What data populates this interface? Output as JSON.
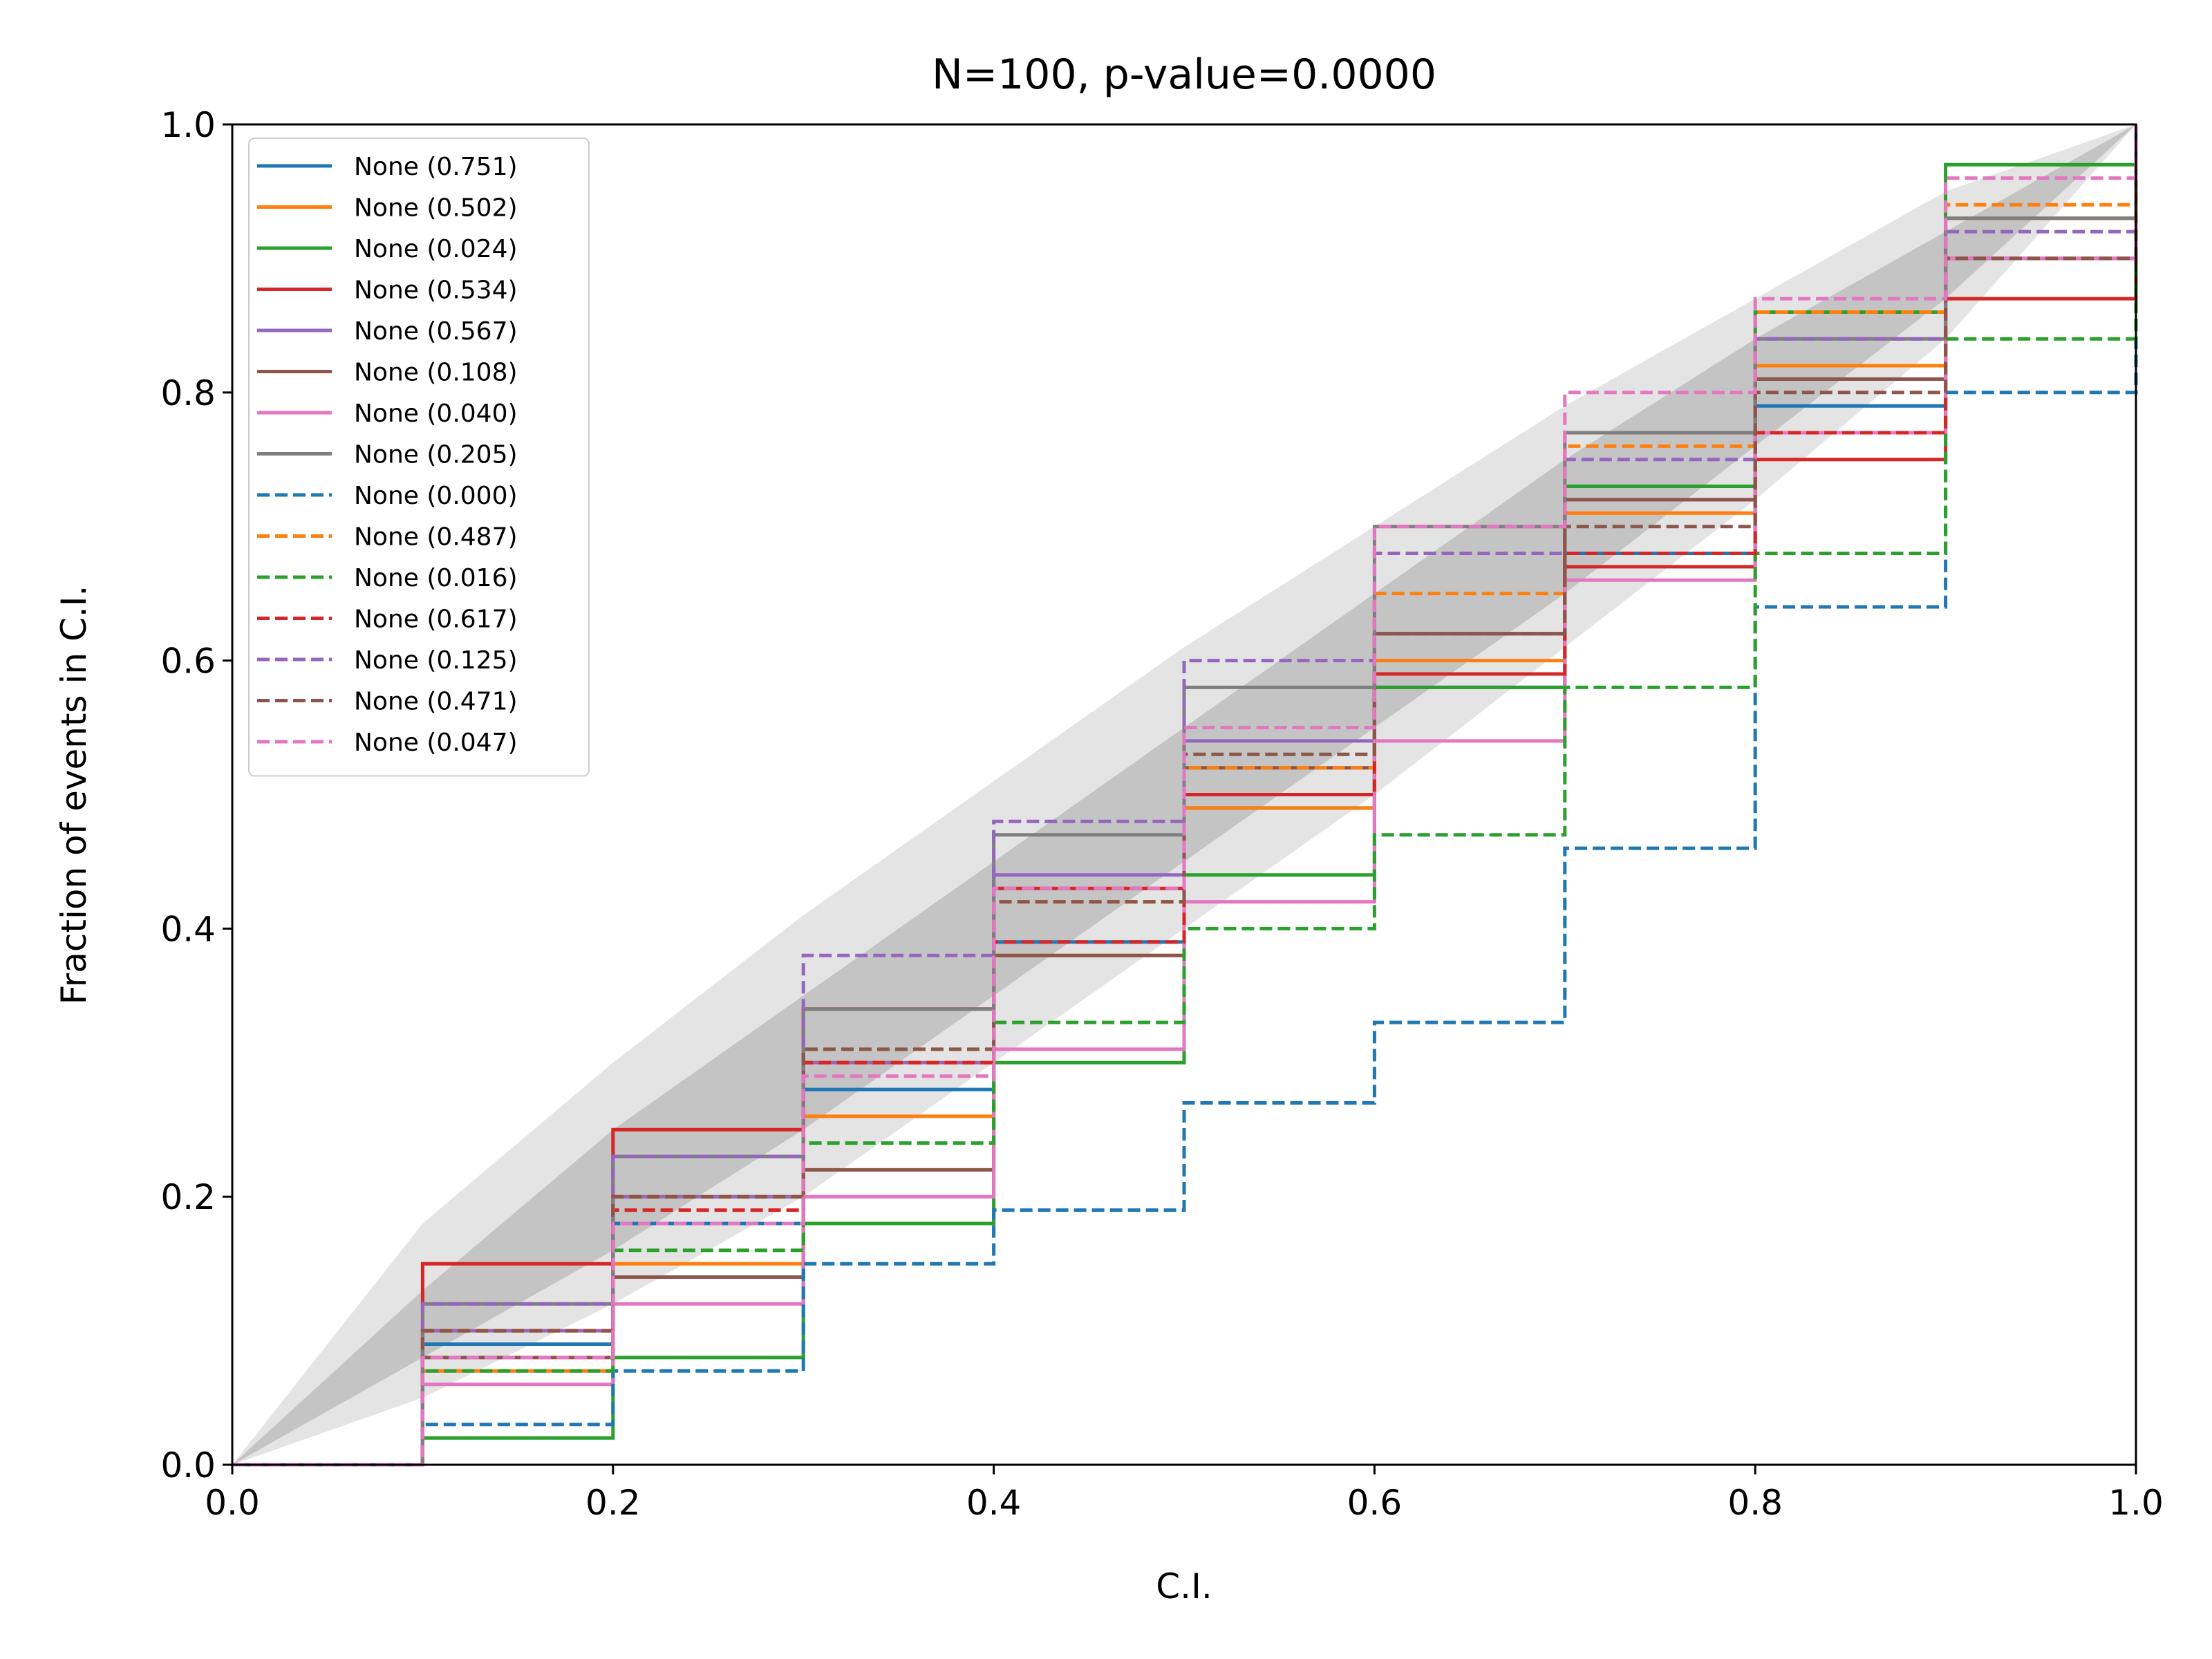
{
  "chart_data": {
    "type": "line",
    "title": "N=100, p-value=0.0000",
    "xlabel": "C.I.",
    "ylabel": "Fraction of events in C.I.",
    "xlim": [
      0,
      1
    ],
    "ylim": [
      0,
      1
    ],
    "xticks": [
      "0.0",
      "0.2",
      "0.4",
      "0.6",
      "0.8",
      "1.0"
    ],
    "yticks": [
      "0.0",
      "0.2",
      "0.4",
      "0.6",
      "0.8",
      "1.0"
    ],
    "grid": false,
    "legend_position": "upper-left",
    "bands": [
      {
        "level": "outer",
        "color": "#e4e4e4",
        "x": [
          0,
          0.1,
          0.2,
          0.3,
          0.4,
          0.5,
          0.6,
          0.7,
          0.8,
          0.9,
          1.0
        ],
        "lower": [
          0,
          0.05,
          0.12,
          0.2,
          0.3,
          0.4,
          0.5,
          0.61,
          0.72,
          0.84,
          1.0
        ],
        "upper": [
          0,
          0.18,
          0.3,
          0.41,
          0.51,
          0.61,
          0.7,
          0.79,
          0.87,
          0.95,
          1.0
        ]
      },
      {
        "level": "inner",
        "color": "#c4c4c4",
        "x": [
          0,
          0.1,
          0.2,
          0.3,
          0.4,
          0.5,
          0.6,
          0.7,
          0.8,
          0.9,
          1.0
        ],
        "lower": [
          0,
          0.08,
          0.16,
          0.25,
          0.35,
          0.45,
          0.55,
          0.65,
          0.76,
          0.87,
          1.0
        ],
        "upper": [
          0,
          0.13,
          0.25,
          0.35,
          0.45,
          0.55,
          0.65,
          0.75,
          0.84,
          0.92,
          1.0
        ]
      }
    ],
    "series": [
      {
        "name": "None (0.751)",
        "color": "#1f77b4",
        "style": "solid",
        "x": [
          0,
          0.1,
          0.2,
          0.3,
          0.4,
          0.5,
          0.6,
          0.7,
          0.8,
          0.9,
          1.0
        ],
        "y": [
          0,
          0.09,
          0.18,
          0.28,
          0.39,
          0.49,
          0.58,
          0.68,
          0.79,
          0.9,
          1.0
        ]
      },
      {
        "name": "None (0.502)",
        "color": "#ff7f0e",
        "style": "solid",
        "x": [
          0,
          0.1,
          0.2,
          0.3,
          0.4,
          0.5,
          0.6,
          0.7,
          0.8,
          0.9,
          1.0
        ],
        "y": [
          0,
          0.07,
          0.15,
          0.26,
          0.38,
          0.49,
          0.6,
          0.71,
          0.82,
          0.93,
          1.0
        ]
      },
      {
        "name": "None (0.024)",
        "color": "#2ca02c",
        "style": "solid",
        "x": [
          0,
          0.1,
          0.2,
          0.3,
          0.4,
          0.5,
          0.6,
          0.7,
          0.8,
          0.9,
          1.0
        ],
        "y": [
          0,
          0.02,
          0.08,
          0.18,
          0.3,
          0.44,
          0.58,
          0.73,
          0.86,
          0.97,
          1.0
        ]
      },
      {
        "name": "None (0.534)",
        "color": "#d62728",
        "style": "solid",
        "x": [
          0,
          0.1,
          0.2,
          0.3,
          0.4,
          0.5,
          0.6,
          0.7,
          0.8,
          0.9,
          1.0
        ],
        "y": [
          0,
          0.15,
          0.25,
          0.34,
          0.43,
          0.5,
          0.59,
          0.67,
          0.75,
          0.87,
          1.0
        ]
      },
      {
        "name": "None (0.567)",
        "color": "#9467bd",
        "style": "solid",
        "x": [
          0,
          0.1,
          0.2,
          0.3,
          0.4,
          0.5,
          0.6,
          0.7,
          0.8,
          0.9,
          1.0
        ],
        "y": [
          0,
          0.1,
          0.2,
          0.3,
          0.44,
          0.54,
          0.62,
          0.72,
          0.81,
          0.9,
          1.0
        ]
      },
      {
        "name": "None (0.108)",
        "color": "#8c564b",
        "style": "solid",
        "x": [
          0,
          0.1,
          0.2,
          0.3,
          0.4,
          0.5,
          0.6,
          0.7,
          0.8,
          0.9,
          1.0
        ],
        "y": [
          0,
          0.08,
          0.14,
          0.22,
          0.38,
          0.52,
          0.62,
          0.72,
          0.81,
          0.9,
          1.0
        ]
      },
      {
        "name": "None (0.040)",
        "color": "#e377c2",
        "style": "solid",
        "x": [
          0,
          0.1,
          0.2,
          0.3,
          0.4,
          0.5,
          0.6,
          0.7,
          0.8,
          0.9,
          1.0
        ],
        "y": [
          0,
          0.06,
          0.12,
          0.2,
          0.31,
          0.42,
          0.54,
          0.66,
          0.77,
          0.9,
          1.0
        ]
      },
      {
        "name": "None (0.205)",
        "color": "#7f7f7f",
        "style": "solid",
        "x": [
          0,
          0.1,
          0.2,
          0.3,
          0.4,
          0.5,
          0.6,
          0.7,
          0.8,
          0.9,
          1.0
        ],
        "y": [
          0,
          0.12,
          0.23,
          0.34,
          0.47,
          0.58,
          0.7,
          0.77,
          0.84,
          0.93,
          1.0
        ]
      },
      {
        "name": "None (0.000)",
        "color": "#1f77b4",
        "style": "dashed",
        "x": [
          0,
          0.1,
          0.2,
          0.3,
          0.4,
          0.5,
          0.6,
          0.7,
          0.8,
          0.9,
          1.0
        ],
        "y": [
          0,
          0.03,
          0.07,
          0.15,
          0.19,
          0.27,
          0.33,
          0.46,
          0.64,
          0.8,
          1.0
        ]
      },
      {
        "name": "None (0.487)",
        "color": "#ff7f0e",
        "style": "dashed",
        "x": [
          0,
          0.1,
          0.2,
          0.3,
          0.4,
          0.5,
          0.6,
          0.7,
          0.8,
          0.9,
          1.0
        ],
        "y": [
          0,
          0.1,
          0.2,
          0.3,
          0.42,
          0.52,
          0.65,
          0.76,
          0.86,
          0.94,
          1.0
        ]
      },
      {
        "name": "None (0.016)",
        "color": "#2ca02c",
        "style": "dashed",
        "x": [
          0,
          0.1,
          0.2,
          0.3,
          0.4,
          0.5,
          0.6,
          0.7,
          0.8,
          0.9,
          1.0
        ],
        "y": [
          0,
          0.07,
          0.16,
          0.24,
          0.33,
          0.4,
          0.47,
          0.58,
          0.68,
          0.84,
          1.0
        ]
      },
      {
        "name": "None (0.617)",
        "color": "#d62728",
        "style": "dashed",
        "x": [
          0,
          0.1,
          0.2,
          0.3,
          0.4,
          0.5,
          0.6,
          0.7,
          0.8,
          0.9,
          1.0
        ],
        "y": [
          0,
          0.1,
          0.19,
          0.3,
          0.39,
          0.5,
          0.59,
          0.68,
          0.77,
          0.9,
          1.0
        ]
      },
      {
        "name": "None (0.125)",
        "color": "#9467bd",
        "style": "dashed",
        "x": [
          0,
          0.1,
          0.2,
          0.3,
          0.4,
          0.5,
          0.6,
          0.7,
          0.8,
          0.9,
          1.0
        ],
        "y": [
          0,
          0.12,
          0.23,
          0.38,
          0.48,
          0.6,
          0.68,
          0.75,
          0.84,
          0.92,
          1.0
        ]
      },
      {
        "name": "None (0.471)",
        "color": "#8c564b",
        "style": "dashed",
        "x": [
          0,
          0.1,
          0.2,
          0.3,
          0.4,
          0.5,
          0.6,
          0.7,
          0.8,
          0.9,
          1.0
        ],
        "y": [
          0,
          0.1,
          0.2,
          0.31,
          0.42,
          0.53,
          0.62,
          0.7,
          0.8,
          0.9,
          1.0
        ]
      },
      {
        "name": "None (0.047)",
        "color": "#e377c2",
        "style": "dashed",
        "x": [
          0,
          0.1,
          0.2,
          0.3,
          0.4,
          0.5,
          0.6,
          0.7,
          0.8,
          0.9,
          1.0
        ],
        "y": [
          0,
          0.08,
          0.18,
          0.29,
          0.43,
          0.55,
          0.7,
          0.8,
          0.87,
          0.96,
          1.0
        ]
      }
    ]
  }
}
